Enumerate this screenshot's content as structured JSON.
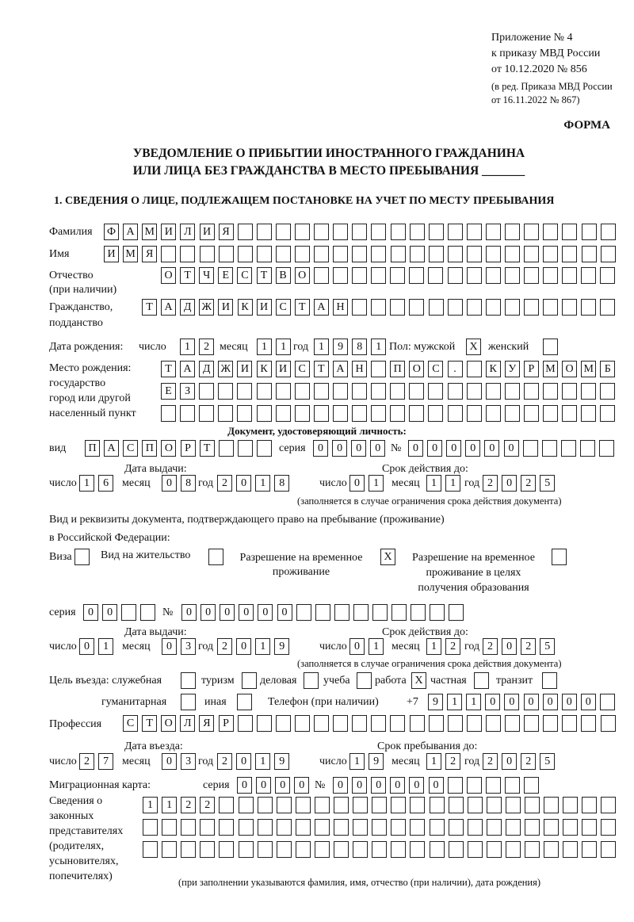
{
  "header": {
    "appendix": [
      "Приложение № 4",
      "к приказу МВД России",
      "от 10.12.2020 № 856"
    ],
    "revision": [
      "(в ред. Приказа МВД России",
      "от 16.11.2022 № 867)"
    ],
    "form_label": "ФОРМА",
    "title_line1": "УВЕДОМЛЕНИЕ О ПРИБЫТИИ ИНОСТРАННОГО ГРАЖДАНИНА",
    "title_line2": "ИЛИ ЛИЦА БЕЗ ГРАЖДАНСТВА В МЕСТО ПРЕБЫВАНИЯ _______",
    "section1": "1. СВЕДЕНИЯ О ЛИЦЕ, ПОДЛЕЖАЩЕМ ПОСТАНОВКЕ НА УЧЕТ ПО МЕСТУ ПРЕБЫВАНИЯ"
  },
  "labels": {
    "surname": "Фамилия",
    "name": "Имя",
    "patronymic": "Отчество",
    "patronymic2": "(при наличии)",
    "citizenship": "Гражданство,",
    "citizenship2": "подданство",
    "birth_date": "Дата рождения:",
    "day": "число",
    "month": "месяц",
    "year": "год",
    "sex": "Пол: мужской",
    "female": "женский",
    "birthplace": [
      "Место рождения:",
      "государство",
      "город или другой",
      "населенный пункт"
    ],
    "id_doc": "Документ, удостоверяющий личность:",
    "kind": "вид",
    "series": "серия",
    "number": "№",
    "issue_date": "Дата выдачи:",
    "valid_until": "Срок действия до:",
    "validity_note": "(заполняется в случае ограничения срока действия документа)",
    "stay_doc1": "Вид и реквизиты документа, подтверждающего право на пребывание (проживание)",
    "stay_doc2": "в Российской Федерации:",
    "visa": "Виза",
    "residence": "Вид на жительство",
    "temp_res": [
      "Разрешение на временное",
      "проживание"
    ],
    "temp_res_edu": [
      "Разрешение на временное",
      "проживание в целях",
      "получения образования"
    ],
    "purpose": "Цель въезда: служебная",
    "tourism": "туризм",
    "business": "деловая",
    "study": "учеба",
    "work": "работа",
    "private": "частная",
    "transit": "транзит",
    "humanitarian": "гуманитарная",
    "other": "иная",
    "phone": "Телефон (при наличии)",
    "phone_prefix": "+7",
    "profession": "Профессия",
    "entry_date": "Дата въезда:",
    "stay_until": "Срок пребывания до:",
    "migration_card": "Миграционная карта:",
    "reps": [
      "Сведения о",
      "законных",
      "представителях",
      "(родителях,",
      "усыновителях,",
      "попечителях)"
    ],
    "reps_note": "(при заполнении указываются фамилия, имя, отчество (при наличии), дата рождения)"
  },
  "fields": {
    "surname": "ФАМИЛИЯ",
    "name": "ИМЯ",
    "patronymic": "ОТЧЕСТВО",
    "citizenship": "ТАДЖИКИСТАН",
    "birth_day": "12",
    "birth_month": "11",
    "birth_year": "1981",
    "sex_male": "X",
    "sex_female": "",
    "birthplace1": "ТАДЖИКИСТАН ПОС. КУРМОМБ",
    "birthplace2": "ЕЗ",
    "birthplace3": "",
    "doc_kind": "ПАСПОРТ",
    "doc_series": "0000",
    "doc_number": "000000",
    "doc_issue_day": "16",
    "doc_issue_month": "08",
    "doc_issue_year": "2018",
    "doc_valid_day": "01",
    "doc_valid_month": "11",
    "doc_valid_year": "2025",
    "visa": "",
    "residence": "",
    "temp_res": "X",
    "temp_res_edu": "",
    "stay_series": "00",
    "stay_number": "000000",
    "stay_issue_day": "01",
    "stay_issue_month": "03",
    "stay_issue_year": "2019",
    "stay_valid_day": "01",
    "stay_valid_month": "12",
    "stay_valid_year": "2025",
    "purpose_service": "",
    "purpose_tourism": "",
    "purpose_business": "",
    "purpose_study": "",
    "purpose_work": "X",
    "purpose_private": "",
    "purpose_transit": "",
    "purpose_humanitarian": "",
    "purpose_other": "",
    "phone": "911000000",
    "profession": "СТОЛЯР",
    "entry_day": "27",
    "entry_month": "03",
    "entry_year": "2019",
    "until_day": "19",
    "until_month": "12",
    "until_year": "2025",
    "mc_series": "0000",
    "mc_number": "000000",
    "reps1": "1122",
    "reps2": "",
    "reps3": ""
  }
}
